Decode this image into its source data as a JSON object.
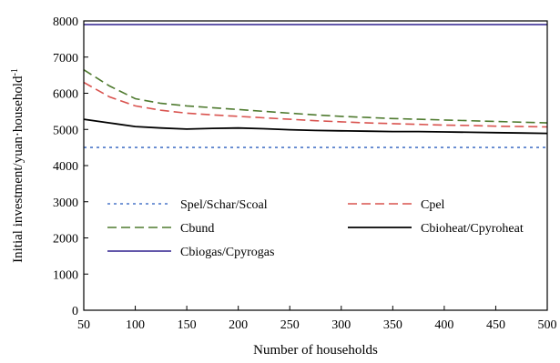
{
  "chart_data": {
    "type": "line",
    "title": "",
    "xlabel": "Number of households",
    "ylabel": "Initial investment/yuan·household",
    "ylabel_sup": "-1",
    "xlim": [
      50,
      500
    ],
    "ylim": [
      0,
      8000
    ],
    "xticks": [
      50,
      100,
      150,
      200,
      250,
      300,
      350,
      400,
      450,
      500
    ],
    "yticks": [
      0,
      1000,
      2000,
      3000,
      4000,
      5000,
      6000,
      7000,
      8000
    ],
    "grid": false,
    "legend_placement": "lower-center, inside plot",
    "x": [
      50,
      75,
      100,
      125,
      150,
      175,
      200,
      225,
      250,
      275,
      300,
      325,
      350,
      375,
      400,
      425,
      450,
      475,
      500
    ],
    "series": [
      {
        "name": "Spel/Schar/Scoal",
        "color": "#4a76c8",
        "dash": "dotted",
        "values": [
          4500,
          4500,
          4500,
          4500,
          4500,
          4500,
          4500,
          4500,
          4500,
          4500,
          4500,
          4500,
          4500,
          4500,
          4500,
          4500,
          4500,
          4500,
          4500
        ]
      },
      {
        "name": "Cpel",
        "color": "#d9534f",
        "dash": "dashed",
        "values": [
          6300,
          5900,
          5650,
          5530,
          5450,
          5400,
          5360,
          5320,
          5280,
          5240,
          5210,
          5180,
          5160,
          5140,
          5120,
          5110,
          5090,
          5080,
          5070
        ]
      },
      {
        "name": "Cbund",
        "color": "#4e7a2e",
        "dash": "dashed",
        "values": [
          6650,
          6200,
          5850,
          5720,
          5650,
          5600,
          5550,
          5500,
          5450,
          5400,
          5360,
          5330,
          5300,
          5280,
          5260,
          5240,
          5220,
          5200,
          5180
        ]
      },
      {
        "name": "Cbioheat/Cpyroheat",
        "color": "#000000",
        "dash": "solid",
        "values": [
          5280,
          5180,
          5080,
          5040,
          5010,
          5030,
          5040,
          5020,
          4990,
          4970,
          4960,
          4950,
          4940,
          4940,
          4930,
          4920,
          4910,
          4900,
          4890
        ]
      },
      {
        "name": "Cbiogas/Cpyrogas",
        "color": "#4b3f9e",
        "dash": "solid",
        "values": [
          7900,
          7900,
          7900,
          7900,
          7900,
          7900,
          7900,
          7900,
          7900,
          7900,
          7900,
          7900,
          7900,
          7900,
          7900,
          7900,
          7900,
          7900,
          7900
        ]
      }
    ]
  }
}
